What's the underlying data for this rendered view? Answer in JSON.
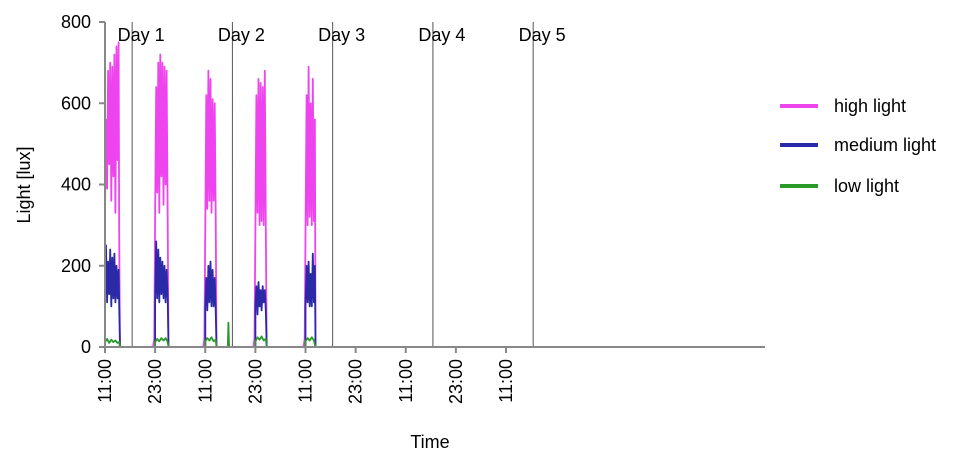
{
  "chart_data": {
    "type": "line",
    "xlabel": "Time",
    "ylabel": "Light [lux]",
    "ylim": [
      0,
      800
    ],
    "y_ticks": [
      0,
      200,
      400,
      600,
      800
    ],
    "x_unit": "hours",
    "xlim": [
      0,
      158
    ],
    "x_ticks": [
      {
        "x": 0,
        "label": "11:00"
      },
      {
        "x": 12,
        "label": "23:00"
      },
      {
        "x": 24,
        "label": "11:00"
      },
      {
        "x": 36,
        "label": "23:00"
      },
      {
        "x": 48,
        "label": "11:00"
      },
      {
        "x": 60,
        "label": "23:00"
      },
      {
        "x": 72,
        "label": "11:00"
      },
      {
        "x": 84,
        "label": "23:00"
      },
      {
        "x": 96,
        "label": "11:00"
      }
    ],
    "day_dividers": [
      6.5,
      30.5,
      54.5,
      78.5,
      102.5
    ],
    "day_labels": [
      {
        "x": 2.3,
        "label": "Day 1"
      },
      {
        "x": 26.3,
        "label": "Day 2"
      },
      {
        "x": 50.3,
        "label": "Day 3"
      },
      {
        "x": 74.3,
        "label": "Day 4"
      },
      {
        "x": 98.3,
        "label": "Day 5"
      }
    ],
    "grid": false,
    "legend_position": "right",
    "series": [
      {
        "name": "high light",
        "color": "#ee44ee",
        "segments": [
          [
            [
              0,
              0
            ],
            [
              0,
              330
            ],
            [
              0.25,
              560
            ],
            [
              0.5,
              390
            ],
            [
              0.75,
              680
            ],
            [
              1,
              450
            ],
            [
              1.25,
              700
            ],
            [
              1.5,
              360
            ],
            [
              1.75,
              690
            ],
            [
              2,
              420
            ],
            [
              2.25,
              720
            ],
            [
              2.5,
              330
            ],
            [
              2.75,
              740
            ],
            [
              3,
              460
            ],
            [
              3.25,
              750
            ],
            [
              3.4,
              280
            ],
            [
              3.6,
              0
            ]
          ],
          [
            [
              11.5,
              0
            ],
            [
              11.8,
              20
            ],
            [
              12,
              320
            ],
            [
              12.25,
              640
            ],
            [
              12.5,
              380
            ],
            [
              12.75,
              700
            ],
            [
              13,
              330
            ],
            [
              13.25,
              720
            ],
            [
              13.5,
              420
            ],
            [
              13.75,
              700
            ],
            [
              14,
              350
            ],
            [
              14.25,
              690
            ],
            [
              14.5,
              400
            ],
            [
              14.75,
              680
            ],
            [
              15,
              310
            ],
            [
              15.2,
              0
            ]
          ],
          [
            [
              23.5,
              0
            ],
            [
              23.8,
              20
            ],
            [
              24,
              300
            ],
            [
              24.25,
              620
            ],
            [
              24.5,
              340
            ],
            [
              24.75,
              680
            ],
            [
              25,
              360
            ],
            [
              25.25,
              660
            ],
            [
              25.5,
              330
            ],
            [
              25.75,
              610
            ],
            [
              26,
              360
            ],
            [
              26.25,
              600
            ],
            [
              26.5,
              320
            ],
            [
              26.7,
              0
            ]
          ],
          [
            [
              35.5,
              0
            ],
            [
              35.8,
              20
            ],
            [
              36,
              290
            ],
            [
              36.25,
              620
            ],
            [
              36.5,
              330
            ],
            [
              36.75,
              660
            ],
            [
              37,
              300
            ],
            [
              37.25,
              650
            ],
            [
              37.5,
              310
            ],
            [
              37.75,
              640
            ],
            [
              38,
              300
            ],
            [
              38.25,
              680
            ],
            [
              38.5,
              290
            ],
            [
              38.7,
              0
            ]
          ],
          [
            [
              47.5,
              0
            ],
            [
              47.8,
              20
            ],
            [
              48,
              280
            ],
            [
              48.25,
              620
            ],
            [
              48.5,
              300
            ],
            [
              48.75,
              690
            ],
            [
              49,
              320
            ],
            [
              49.25,
              600
            ],
            [
              49.5,
              300
            ],
            [
              49.75,
              660
            ],
            [
              50,
              310
            ],
            [
              50.25,
              560
            ],
            [
              50.4,
              0
            ]
          ]
        ]
      },
      {
        "name": "medium light",
        "color": "#2a2aa8",
        "segments": [
          [
            [
              0,
              0
            ],
            [
              0,
              120
            ],
            [
              0.25,
              250
            ],
            [
              0.5,
              110
            ],
            [
              0.75,
              210
            ],
            [
              1,
              130
            ],
            [
              1.25,
              240
            ],
            [
              1.5,
              100
            ],
            [
              1.75,
              220
            ],
            [
              2,
              120
            ],
            [
              2.25,
              230
            ],
            [
              2.5,
              110
            ],
            [
              2.75,
              200
            ],
            [
              3,
              120
            ],
            [
              3.25,
              190
            ],
            [
              3.4,
              100
            ],
            [
              3.6,
              0
            ]
          ],
          [
            [
              12,
              0
            ],
            [
              12,
              110
            ],
            [
              12.25,
              260
            ],
            [
              12.5,
              120
            ],
            [
              12.75,
              240
            ],
            [
              13,
              110
            ],
            [
              13.25,
              220
            ],
            [
              13.5,
              130
            ],
            [
              13.75,
              210
            ],
            [
              14,
              120
            ],
            [
              14.25,
              200
            ],
            [
              14.5,
              110
            ],
            [
              14.75,
              190
            ],
            [
              15,
              120
            ],
            [
              15.2,
              0
            ]
          ],
          [
            [
              24,
              0
            ],
            [
              24,
              100
            ],
            [
              24.25,
              170
            ],
            [
              24.5,
              90
            ],
            [
              24.75,
              200
            ],
            [
              25,
              110
            ],
            [
              25.25,
              210
            ],
            [
              25.5,
              100
            ],
            [
              25.75,
              190
            ],
            [
              26,
              100
            ],
            [
              26.25,
              170
            ],
            [
              26.5,
              90
            ],
            [
              26.7,
              0
            ]
          ],
          [
            [
              36,
              0
            ],
            [
              36,
              100
            ],
            [
              36.25,
              150
            ],
            [
              36.5,
              80
            ],
            [
              36.75,
              160
            ],
            [
              37,
              100
            ],
            [
              37.25,
              140
            ],
            [
              37.5,
              90
            ],
            [
              37.75,
              150
            ],
            [
              38,
              110
            ],
            [
              38.25,
              140
            ],
            [
              38.5,
              90
            ],
            [
              38.7,
              0
            ]
          ],
          [
            [
              48,
              0
            ],
            [
              48,
              100
            ],
            [
              48.25,
              200
            ],
            [
              48.5,
              110
            ],
            [
              48.75,
              210
            ],
            [
              49,
              100
            ],
            [
              49.25,
              180
            ],
            [
              49.5,
              100
            ],
            [
              49.75,
              230
            ],
            [
              50,
              110
            ],
            [
              50.25,
              200
            ],
            [
              50.4,
              0
            ]
          ]
        ]
      },
      {
        "name": "low light",
        "color": "#2a9a2a",
        "segments": [
          [
            [
              0,
              0
            ],
            [
              0,
              12
            ],
            [
              0.5,
              20
            ],
            [
              1,
              10
            ],
            [
              1.5,
              18
            ],
            [
              2,
              12
            ],
            [
              2.5,
              16
            ],
            [
              3,
              10
            ],
            [
              3.4,
              12
            ],
            [
              3.6,
              0
            ]
          ],
          [
            [
              12,
              0
            ],
            [
              12,
              12
            ],
            [
              12.5,
              20
            ],
            [
              13,
              14
            ],
            [
              13.5,
              22
            ],
            [
              14,
              16
            ],
            [
              14.5,
              22
            ],
            [
              15,
              12
            ],
            [
              15.2,
              0
            ]
          ],
          [
            [
              24,
              0
            ],
            [
              24,
              14
            ],
            [
              24.5,
              22
            ],
            [
              25,
              16
            ],
            [
              25.5,
              24
            ],
            [
              26,
              14
            ],
            [
              26.5,
              18
            ],
            [
              26.7,
              0
            ]
          ],
          [
            [
              29.4,
              0
            ],
            [
              29.55,
              60
            ],
            [
              29.7,
              0
            ]
          ],
          [
            [
              36,
              0
            ],
            [
              36,
              14
            ],
            [
              36.5,
              24
            ],
            [
              37,
              18
            ],
            [
              37.5,
              26
            ],
            [
              38,
              16
            ],
            [
              38.5,
              20
            ],
            [
              38.7,
              0
            ]
          ],
          [
            [
              48,
              0
            ],
            [
              48,
              14
            ],
            [
              48.5,
              22
            ],
            [
              49,
              16
            ],
            [
              49.5,
              24
            ],
            [
              50,
              16
            ],
            [
              50.4,
              0
            ]
          ]
        ]
      }
    ]
  }
}
